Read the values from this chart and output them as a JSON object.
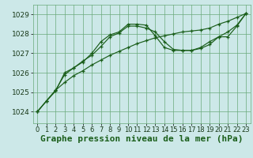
{
  "xlabel": "Graphe pression niveau de la mer (hPa)",
  "background_color": "#cce8e8",
  "grid_color": "#6aaa7a",
  "line_color": "#1a5e1a",
  "x_ticks": [
    0,
    1,
    2,
    3,
    4,
    5,
    6,
    7,
    8,
    9,
    10,
    11,
    12,
    13,
    14,
    15,
    16,
    17,
    18,
    19,
    20,
    21,
    22,
    23
  ],
  "ylim": [
    1023.4,
    1029.5
  ],
  "yticks": [
    1024,
    1025,
    1026,
    1027,
    1028,
    1029
  ],
  "series": [
    [
      1024.0,
      1024.55,
      1025.05,
      1026.0,
      1026.25,
      1026.55,
      1027.0,
      1027.6,
      1027.95,
      1028.1,
      1028.5,
      1028.5,
      1028.45,
      1027.9,
      1027.3,
      1027.15,
      1027.15,
      1027.15,
      1027.3,
      1027.6,
      1027.85,
      1027.85,
      1028.4,
      1029.05
    ],
    [
      1024.0,
      1024.55,
      1025.1,
      1025.9,
      1026.25,
      1026.6,
      1026.9,
      1027.35,
      1027.85,
      1028.05,
      1028.4,
      1028.4,
      1028.3,
      1028.1,
      1027.6,
      1027.2,
      1027.15,
      1027.15,
      1027.25,
      1027.45,
      1027.85,
      1028.1,
      1028.45,
      1029.05
    ],
    [
      1024.0,
      1024.55,
      1025.1,
      1025.5,
      1025.85,
      1026.1,
      1026.4,
      1026.65,
      1026.9,
      1027.1,
      1027.3,
      1027.5,
      1027.65,
      1027.8,
      1027.9,
      1028.0,
      1028.1,
      1028.15,
      1028.2,
      1028.3,
      1028.5,
      1028.65,
      1028.85,
      1029.05
    ]
  ],
  "xlabel_fontsize": 8,
  "tick_fontsize": 6
}
